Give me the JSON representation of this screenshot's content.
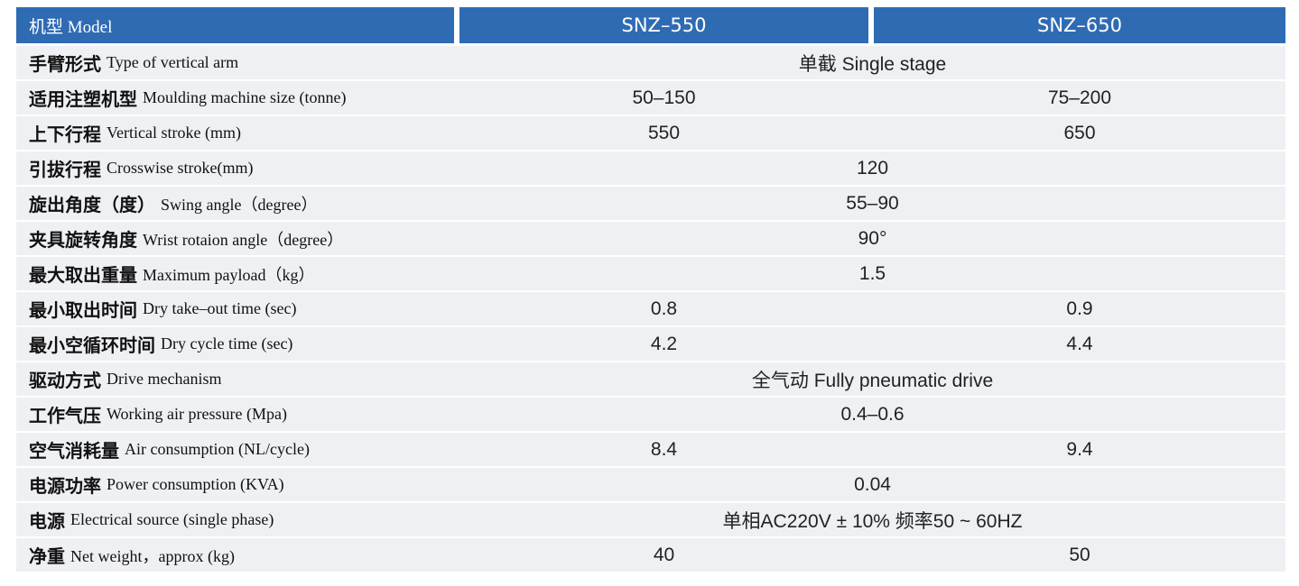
{
  "table": {
    "header": [
      "机型 Model",
      "SNZ–550",
      "SNZ–650"
    ],
    "rows": [
      {
        "label_zh": "手臂形式",
        "label_en": "Type of vertical arm",
        "values": [
          "单截 Single stage"
        ]
      },
      {
        "label_zh": "适用注塑机型",
        "label_en": "Moulding machine size (tonne)",
        "values": [
          "50–150",
          "75–200"
        ]
      },
      {
        "label_zh": "上下行程",
        "label_en": "Vertical stroke (mm)",
        "values": [
          "550",
          "650"
        ]
      },
      {
        "label_zh": "引拔行程",
        "label_en": "Crosswise stroke(mm)",
        "values": [
          "120"
        ]
      },
      {
        "label_zh": "旋出角度（度）",
        "label_en": "Swing angle（degree）",
        "values": [
          "55–90"
        ]
      },
      {
        "label_zh": "夹具旋转角度",
        "label_en": "Wrist rotaion angle（degree）",
        "values": [
          "90°"
        ]
      },
      {
        "label_zh": "最大取出重量",
        "label_en": "Maximum payload（kg）",
        "values": [
          "1.5"
        ]
      },
      {
        "label_zh": "最小取出时间",
        "label_en": "Dry take–out time (sec)",
        "values": [
          "0.8",
          "0.9"
        ]
      },
      {
        "label_zh": "最小空循环时间",
        "label_en": "Dry cycle time (sec)",
        "values": [
          "4.2",
          "4.4"
        ]
      },
      {
        "label_zh": "驱动方式",
        "label_en": "Drive mechanism",
        "values": [
          "全气动 Fully pneumatic drive"
        ]
      },
      {
        "label_zh": "工作气压",
        "label_en": "Working air pressure (Mpa)",
        "values": [
          "0.4–0.6"
        ]
      },
      {
        "label_zh": "空气消耗量",
        "label_en": "Air consumption (NL/cycle)",
        "values": [
          "8.4",
          "9.4"
        ]
      },
      {
        "label_zh": "电源功率",
        "label_en": "Power consumption (KVA)",
        "values": [
          "0.04"
        ]
      },
      {
        "label_zh": "电源",
        "label_en": "Electrical source (single phase)",
        "values": [
          "单相AC220V ± 10%  频率50 ~ 60HZ"
        ]
      },
      {
        "label_zh": "净重",
        "label_en": "Net weight，approx (kg)",
        "values": [
          "40",
          "50"
        ]
      }
    ]
  }
}
